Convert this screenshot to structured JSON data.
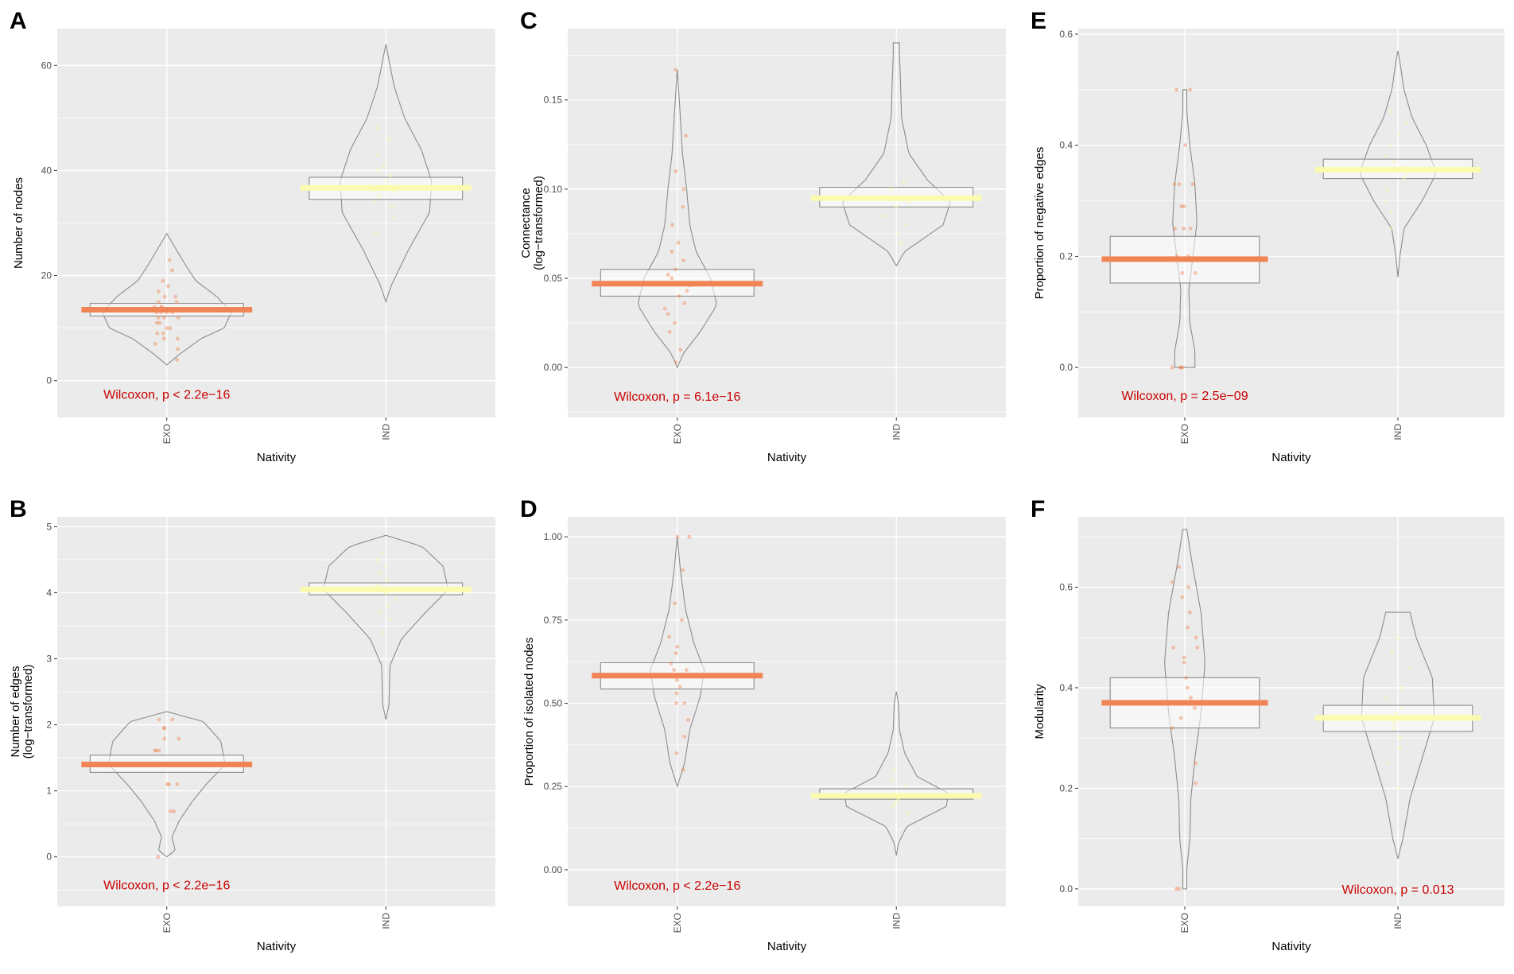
{
  "colors": {
    "exo": "#f08454",
    "ind": "#fbfbb0",
    "panel_bg": "#ebebeb",
    "grid": "#ffffff",
    "stat": "#c80000",
    "outline": "#8c8c8c"
  },
  "chart_data": [
    {
      "letter": "A",
      "type": "violin-box",
      "xlabel": "Nativity",
      "ylabel": [
        "Number of nodes"
      ],
      "ylim": [
        -7,
        67
      ],
      "yticks": [
        0,
        20,
        40,
        60
      ],
      "categories": [
        "EXO",
        "IND"
      ],
      "groups": [
        {
          "name": "EXO",
          "color": "exo",
          "median": 13.5,
          "q1": 12.3,
          "q3": 14.7,
          "vmin": 3,
          "vmax": 28,
          "violin": [
            [
              3,
              0
            ],
            [
              5,
              0.12
            ],
            [
              8,
              0.33
            ],
            [
              10,
              0.55
            ],
            [
              13,
              0.62
            ],
            [
              16,
              0.48
            ],
            [
              19,
              0.28
            ],
            [
              22,
              0.18
            ],
            [
              25,
              0.09
            ],
            [
              28,
              0
            ]
          ],
          "points": [
            4,
            6,
            7,
            8,
            8,
            9,
            9,
            10,
            10,
            11,
            11,
            12,
            12,
            12,
            13,
            13,
            13,
            13,
            14,
            14,
            14,
            15,
            15,
            16,
            16,
            17,
            18,
            19,
            21,
            23
          ]
        },
        {
          "name": "IND",
          "color": "ind",
          "median": 36.7,
          "q1": 34.5,
          "q3": 38.7,
          "vmin": 15,
          "vmax": 64,
          "violin": [
            [
              15,
              0
            ],
            [
              18,
              0.05
            ],
            [
              25,
              0.22
            ],
            [
              32,
              0.42
            ],
            [
              38,
              0.44
            ],
            [
              44,
              0.34
            ],
            [
              50,
              0.18
            ],
            [
              56,
              0.08
            ],
            [
              61,
              0.03
            ],
            [
              64,
              0
            ]
          ],
          "points": [
            28,
            31,
            33,
            34,
            35,
            36,
            36,
            37,
            38,
            39,
            40,
            41,
            43,
            46,
            48
          ]
        }
      ],
      "stat": "Wilcoxon, p < 2.2e−16",
      "stat_x": 1.0,
      "stat_y": -2.5
    },
    {
      "letter": "B",
      "type": "violin-box",
      "xlabel": "Nativity",
      "ylabel": [
        "Number of edges",
        "(log−transformed)"
      ],
      "ylim": [
        -0.75,
        5.15
      ],
      "yticks": [
        0,
        1,
        2,
        3,
        4,
        5
      ],
      "categories": [
        "EXO",
        "IND"
      ],
      "groups": [
        {
          "name": "EXO",
          "color": "exo",
          "median": 1.4,
          "q1": 1.28,
          "q3": 1.54,
          "vmin": 0,
          "vmax": 2.2,
          "violin": [
            [
              0,
              0
            ],
            [
              0.1,
              0.08
            ],
            [
              0.3,
              0.05
            ],
            [
              0.55,
              0.12
            ],
            [
              0.85,
              0.25
            ],
            [
              1.1,
              0.38
            ],
            [
              1.4,
              0.56
            ],
            [
              1.75,
              0.52
            ],
            [
              2.05,
              0.35
            ],
            [
              2.2,
              0
            ]
          ],
          "points": [
            0,
            0.69,
            0.69,
            1.1,
            1.1,
            1.1,
            1.39,
            1.39,
            1.39,
            1.61,
            1.61,
            1.61,
            1.79,
            1.79,
            1.95,
            1.95,
            2.08,
            2.08
          ]
        },
        {
          "name": "IND",
          "color": "ind",
          "median": 4.05,
          "q1": 3.97,
          "q3": 4.15,
          "vmin": 2.08,
          "vmax": 4.87,
          "violin": [
            [
              2.08,
              0
            ],
            [
              2.3,
              0.03
            ],
            [
              2.9,
              0.04
            ],
            [
              3.3,
              0.15
            ],
            [
              3.7,
              0.38
            ],
            [
              4.05,
              0.6
            ],
            [
              4.4,
              0.55
            ],
            [
              4.7,
              0.35
            ],
            [
              4.87,
              0
            ]
          ],
          "points": [
            3.4,
            3.6,
            3.7,
            3.8,
            3.9,
            4.0,
            4.0,
            4.1,
            4.1,
            4.2,
            4.3,
            4.4,
            4.5,
            4.6
          ]
        }
      ],
      "stat": "Wilcoxon, p < 2.2e−16",
      "stat_x": 1.0,
      "stat_y": -0.42
    },
    {
      "letter": "C",
      "type": "violin-box",
      "xlabel": "Nativity",
      "ylabel": [
        "Connectance",
        "(log−transformed)"
      ],
      "ylim": [
        -0.028,
        0.19
      ],
      "yticks": [
        0.0,
        0.05,
        0.1,
        0.15
      ],
      "tick_labels": [
        "0.00",
        "0.05",
        "0.10",
        "0.15"
      ],
      "categories": [
        "EXO",
        "IND"
      ],
      "groups": [
        {
          "name": "EXO",
          "color": "exo",
          "median": 0.047,
          "q1": 0.04,
          "q3": 0.055,
          "vmin": 0,
          "vmax": 0.167,
          "violin": [
            [
              0,
              0
            ],
            [
              0.008,
              0.06
            ],
            [
              0.02,
              0.22
            ],
            [
              0.035,
              0.38
            ],
            [
              0.05,
              0.32
            ],
            [
              0.065,
              0.18
            ],
            [
              0.08,
              0.12
            ],
            [
              0.1,
              0.09
            ],
            [
              0.12,
              0.05
            ],
            [
              0.14,
              0.03
            ],
            [
              0.167,
              0
            ]
          ],
          "points": [
            0.003,
            0.01,
            0.02,
            0.025,
            0.03,
            0.033,
            0.036,
            0.04,
            0.043,
            0.046,
            0.05,
            0.052,
            0.055,
            0.06,
            0.065,
            0.07,
            0.08,
            0.09,
            0.1,
            0.11,
            0.13,
            0.167
          ]
        },
        {
          "name": "IND",
          "color": "ind",
          "median": 0.095,
          "q1": 0.09,
          "q3": 0.101,
          "vmin": 0.057,
          "vmax": 0.182,
          "violin": [
            [
              0.057,
              0
            ],
            [
              0.065,
              0.08
            ],
            [
              0.08,
              0.45
            ],
            [
              0.093,
              0.52
            ],
            [
              0.105,
              0.3
            ],
            [
              0.12,
              0.12
            ],
            [
              0.14,
              0.05
            ],
            [
              0.16,
              0.04
            ],
            [
              0.175,
              0.03
            ],
            [
              0.182,
              0.03
            ]
          ],
          "points": [
            0.07,
            0.075,
            0.08,
            0.085,
            0.09,
            0.093,
            0.096,
            0.1,
            0.104
          ]
        }
      ],
      "stat": "Wilcoxon, p = 6.1e−16",
      "stat_x": 1.0,
      "stat_y": -0.016
    },
    {
      "letter": "D",
      "type": "violin-box",
      "xlabel": "Nativity",
      "ylabel": [
        "Proportion of isolated nodes"
      ],
      "ylim": [
        -0.11,
        1.06
      ],
      "yticks": [
        0,
        0.25,
        0.5,
        0.75,
        1.0
      ],
      "tick_labels": [
        "0.00",
        "0.25",
        "0.50",
        "0.75",
        "1.00"
      ],
      "categories": [
        "EXO",
        "IND"
      ],
      "groups": [
        {
          "name": "EXO",
          "color": "exo",
          "median": 0.583,
          "q1": 0.543,
          "q3": 0.622,
          "vmin": 0.25,
          "vmax": 1.0,
          "violin": [
            [
              0.25,
              0
            ],
            [
              0.32,
              0.07
            ],
            [
              0.42,
              0.12
            ],
            [
              0.52,
              0.22
            ],
            [
              0.6,
              0.26
            ],
            [
              0.68,
              0.16
            ],
            [
              0.78,
              0.08
            ],
            [
              0.9,
              0.03
            ],
            [
              1.0,
              0
            ]
          ],
          "points": [
            0.3,
            0.35,
            0.4,
            0.45,
            0.5,
            0.5,
            0.53,
            0.55,
            0.57,
            0.6,
            0.6,
            0.62,
            0.65,
            0.67,
            0.7,
            0.75,
            0.8,
            0.9,
            1.0,
            1.0
          ]
        },
        {
          "name": "IND",
          "color": "ind",
          "median": 0.222,
          "q1": 0.212,
          "q3": 0.243,
          "vmin": 0.043,
          "vmax": 0.535,
          "violin": [
            [
              0.043,
              0
            ],
            [
              0.08,
              0.02
            ],
            [
              0.13,
              0.1
            ],
            [
              0.19,
              0.48
            ],
            [
              0.23,
              0.5
            ],
            [
              0.28,
              0.2
            ],
            [
              0.35,
              0.08
            ],
            [
              0.42,
              0.03
            ],
            [
              0.5,
              0.02
            ],
            [
              0.535,
              0
            ]
          ],
          "points": [
            0.17,
            0.19,
            0.2,
            0.21,
            0.22,
            0.23,
            0.25,
            0.27,
            0.3
          ]
        }
      ],
      "stat": "Wilcoxon, p < 2.2e−16",
      "stat_x": 1.0,
      "stat_y": -0.045
    },
    {
      "letter": "E",
      "type": "violin-box",
      "xlabel": "Nativity",
      "ylabel": [
        "Proportion of negative edges"
      ],
      "ylim": [
        -0.09,
        0.61
      ],
      "yticks": [
        0,
        0.2,
        0.4,
        0.6
      ],
      "tick_labels": [
        "0.0",
        "0.2",
        "0.4",
        "0.6"
      ],
      "categories": [
        "EXO",
        "IND"
      ],
      "groups": [
        {
          "name": "EXO",
          "color": "exo",
          "median": 0.195,
          "q1": 0.152,
          "q3": 0.236,
          "vmin": 0,
          "vmax": 0.5,
          "violin": [
            [
              0,
              0.1
            ],
            [
              0.03,
              0.1
            ],
            [
              0.08,
              0.05
            ],
            [
              0.14,
              0.04
            ],
            [
              0.2,
              0.08
            ],
            [
              0.26,
              0.12
            ],
            [
              0.33,
              0.1
            ],
            [
              0.4,
              0.05
            ],
            [
              0.46,
              0.02
            ],
            [
              0.5,
              0.02
            ]
          ],
          "points": [
            0,
            0,
            0,
            0,
            0.17,
            0.17,
            0.2,
            0.2,
            0.25,
            0.25,
            0.25,
            0.29,
            0.29,
            0.33,
            0.33,
            0.33,
            0.4,
            0.5,
            0.5
          ]
        },
        {
          "name": "IND",
          "color": "ind",
          "median": 0.356,
          "q1": 0.34,
          "q3": 0.375,
          "vmin": 0.163,
          "vmax": 0.57,
          "violin": [
            [
              0.163,
              0
            ],
            [
              0.2,
              0.02
            ],
            [
              0.25,
              0.06
            ],
            [
              0.3,
              0.24
            ],
            [
              0.35,
              0.38
            ],
            [
              0.4,
              0.28
            ],
            [
              0.45,
              0.14
            ],
            [
              0.5,
              0.06
            ],
            [
              0.55,
              0.02
            ],
            [
              0.57,
              0
            ]
          ],
          "points": [
            0.25,
            0.28,
            0.3,
            0.32,
            0.34,
            0.35,
            0.36,
            0.37,
            0.38,
            0.4,
            0.42,
            0.44,
            0.46
          ]
        }
      ],
      "stat": "Wilcoxon, p = 2.5e−09",
      "stat_x": 1.0,
      "stat_y": -0.05
    },
    {
      "letter": "F",
      "type": "violin-box",
      "xlabel": "Nativity",
      "ylabel": [
        "Modularity"
      ],
      "ylim": [
        -0.035,
        0.74
      ],
      "yticks": [
        0,
        0.2,
        0.4,
        0.6
      ],
      "tick_labels": [
        "0.0",
        "0.2",
        "0.4",
        "0.6"
      ],
      "categories": [
        "EXO",
        "IND"
      ],
      "groups": [
        {
          "name": "EXO",
          "color": "exo",
          "median": 0.37,
          "q1": 0.32,
          "q3": 0.42,
          "vmin": 0,
          "vmax": 0.715,
          "violin": [
            [
              0,
              0.02
            ],
            [
              0.04,
              0.02
            ],
            [
              0.1,
              0.05
            ],
            [
              0.18,
              0.06
            ],
            [
              0.26,
              0.1
            ],
            [
              0.35,
              0.16
            ],
            [
              0.45,
              0.2
            ],
            [
              0.55,
              0.16
            ],
            [
              0.65,
              0.07
            ],
            [
              0.715,
              0.02
            ]
          ],
          "points": [
            0,
            0,
            0.21,
            0.25,
            0.32,
            0.34,
            0.36,
            0.37,
            0.38,
            0.4,
            0.42,
            0.45,
            0.46,
            0.48,
            0.48,
            0.5,
            0.52,
            0.55,
            0.58,
            0.6,
            0.61,
            0.64
          ]
        },
        {
          "name": "IND",
          "color": "ind",
          "median": 0.34,
          "q1": 0.313,
          "q3": 0.365,
          "vmin": 0.06,
          "vmax": 0.55,
          "violin": [
            [
              0.06,
              0
            ],
            [
              0.1,
              0.05
            ],
            [
              0.18,
              0.12
            ],
            [
              0.26,
              0.24
            ],
            [
              0.34,
              0.36
            ],
            [
              0.42,
              0.34
            ],
            [
              0.5,
              0.18
            ],
            [
              0.55,
              0.12
            ]
          ],
          "points": [
            0.2,
            0.25,
            0.28,
            0.3,
            0.32,
            0.33,
            0.34,
            0.35,
            0.36,
            0.38,
            0.4,
            0.44,
            0.47,
            0.5
          ]
        }
      ],
      "stat": "Wilcoxon, p = 0.013",
      "stat_x": 2.0,
      "stat_y": 0.0
    }
  ]
}
